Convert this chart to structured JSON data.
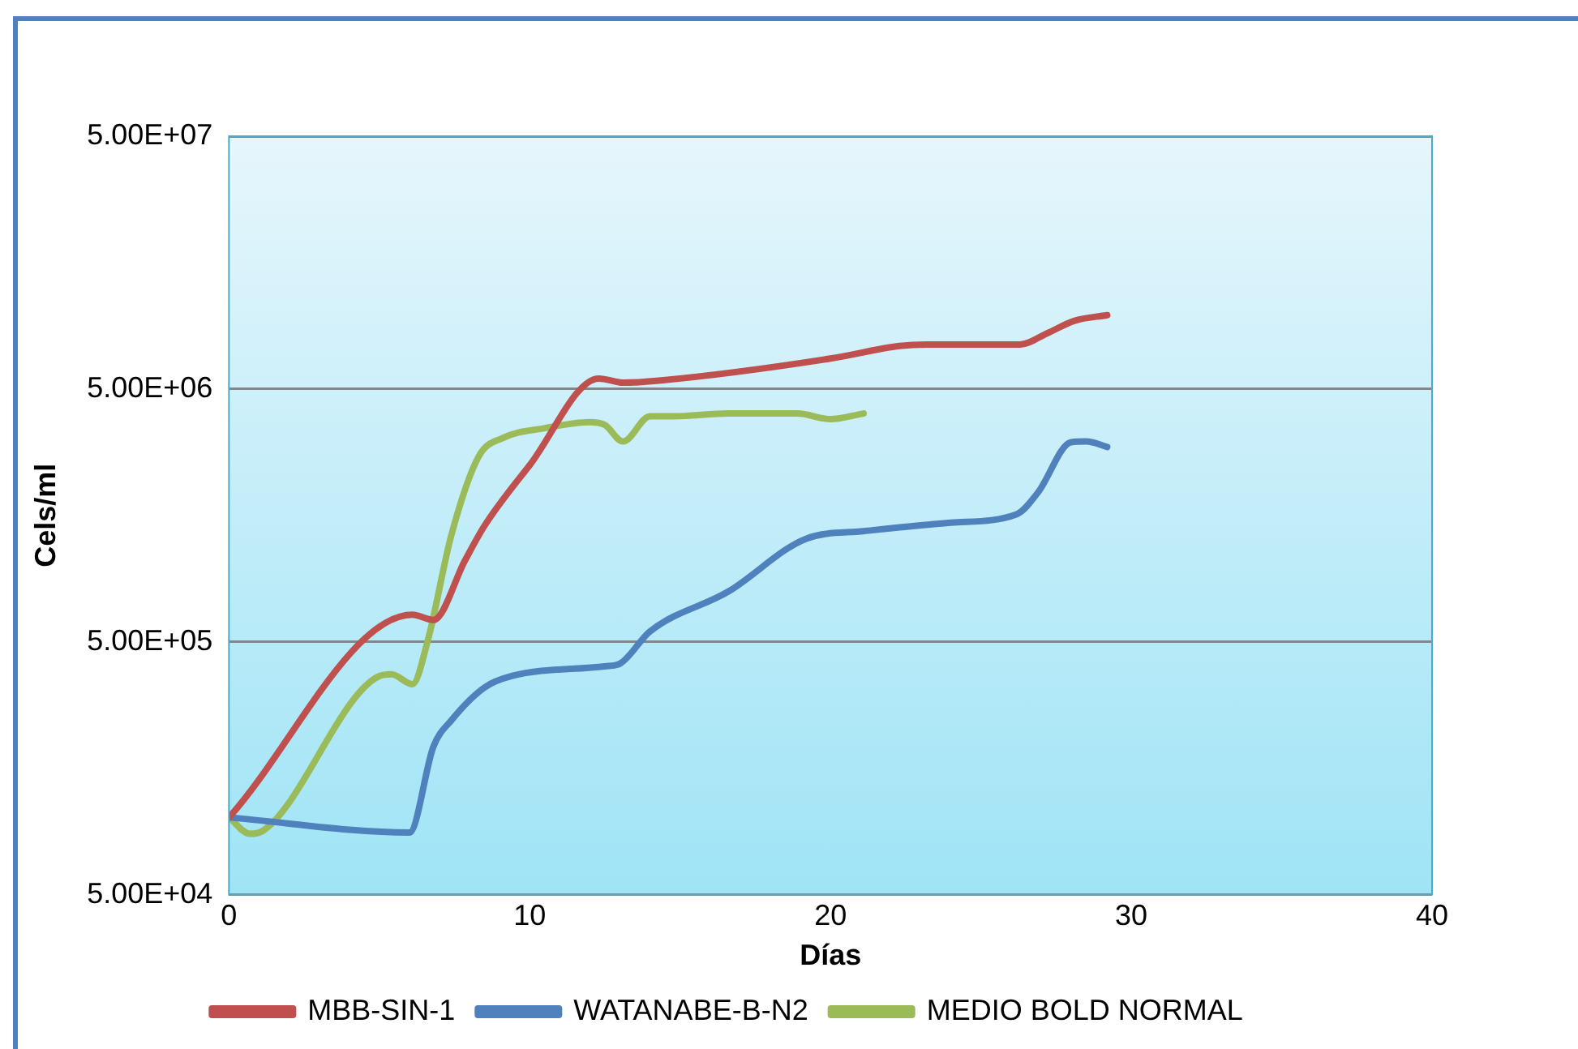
{
  "chart_data": {
    "type": "line",
    "xlabel": "Días",
    "ylabel": "Cels/ml",
    "log": "y",
    "grid": "y",
    "legend": "bottom",
    "marker": "none",
    "line_style": "solid",
    "xlim": [
      0,
      40
    ],
    "xticks": [
      0,
      10,
      20,
      30,
      40
    ],
    "ylim": [
      50000,
      50000000
    ],
    "yticks": [
      {
        "value": 50000,
        "label": "5.00E+04"
      },
      {
        "value": 500000,
        "label": "5.00E+05"
      },
      {
        "value": 5000000,
        "label": "5.00E+06"
      },
      {
        "value": 50000000,
        "label": "5.00E+07"
      }
    ],
    "series": [
      {
        "name": "MBB-SIN-1",
        "color": "#c0504d",
        "x": [
          0,
          6.1,
          6.8,
          7.85,
          8.5,
          10,
          12.3,
          13.1,
          14.3,
          20,
          22.3,
          23.2,
          26.3,
          27.2,
          28.1,
          29.2
        ],
        "values": [
          101000,
          640000,
          610000,
          1050000,
          1440000,
          2500000,
          5500000,
          5300000,
          5400000,
          6600000,
          7400000,
          7500000,
          7500000,
          8300000,
          9300000,
          9800000
        ]
      },
      {
        "name": "WATANABE-B-N2",
        "color": "#4f81bd",
        "x": [
          0,
          6,
          6.8,
          7.4,
          8.5,
          9.4,
          12.5,
          13,
          14,
          16.6,
          19.2,
          21.1,
          24,
          26.2,
          26.9,
          28,
          28.5,
          29.2
        ],
        "values": [
          101000,
          88000,
          193000,
          245000,
          330000,
          366000,
          400000,
          410000,
          550000,
          790000,
          1280000,
          1370000,
          1480000,
          1600000,
          1950000,
          3080000,
          3100000,
          2950000
        ]
      },
      {
        "name": "MEDIO BOLD NORMAL",
        "color": "#9bbb59",
        "x": [
          0,
          0.7,
          1.1,
          5,
          5.4,
          6.1,
          6.6,
          7.4,
          8.3,
          9.1,
          10.5,
          12,
          12.5,
          13.1,
          14,
          14.8,
          16.6,
          18.9,
          20,
          21.1
        ],
        "values": [
          101000,
          87000,
          89000,
          366000,
          372000,
          340000,
          500000,
          1330000,
          2700000,
          3200000,
          3500000,
          3700000,
          3600000,
          3100000,
          3900000,
          3900000,
          4000000,
          4000000,
          3800000,
          4000000
        ]
      }
    ]
  }
}
